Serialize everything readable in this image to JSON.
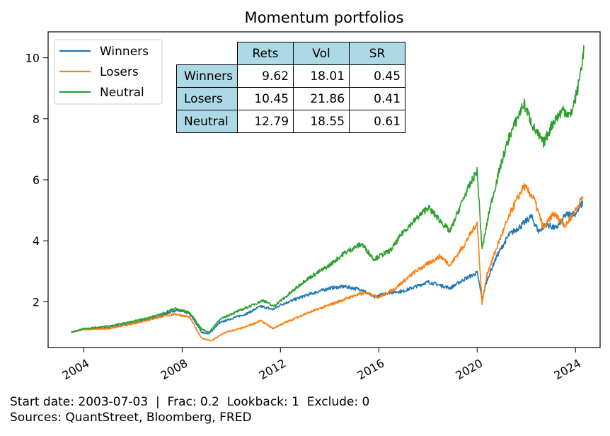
{
  "chart_data": {
    "type": "line",
    "title": "Momentum portfolios",
    "xlabel": "",
    "ylabel": "",
    "xlim": [
      2002.55,
      2025.0
    ],
    "ylim": [
      0.5,
      10.85
    ],
    "xticks": [
      2004,
      2008,
      2012,
      2016,
      2020,
      2024
    ],
    "xtick_labels": [
      "2004",
      "2008",
      "2012",
      "2016",
      "2020",
      "2024"
    ],
    "yticks": [
      2,
      4,
      6,
      8,
      10
    ],
    "ytick_labels": [
      "2",
      "4",
      "6",
      "8",
      "10"
    ],
    "grid": false,
    "legend_position": "top-left",
    "series": [
      {
        "name": "Winners",
        "color": "#1f77b4",
        "points": [
          [
            2003.5,
            1.0
          ],
          [
            2004.0,
            1.1
          ],
          [
            2005.0,
            1.15
          ],
          [
            2006.0,
            1.3
          ],
          [
            2007.0,
            1.5
          ],
          [
            2007.7,
            1.72
          ],
          [
            2008.3,
            1.62
          ],
          [
            2008.8,
            1.0
          ],
          [
            2009.1,
            0.95
          ],
          [
            2009.5,
            1.3
          ],
          [
            2010.0,
            1.45
          ],
          [
            2010.6,
            1.6
          ],
          [
            2011.2,
            1.85
          ],
          [
            2011.7,
            1.75
          ],
          [
            2012.0,
            1.9
          ],
          [
            2013.0,
            2.2
          ],
          [
            2014.0,
            2.45
          ],
          [
            2014.6,
            2.5
          ],
          [
            2015.3,
            2.4
          ],
          [
            2015.8,
            2.15
          ],
          [
            2016.4,
            2.3
          ],
          [
            2017.0,
            2.35
          ],
          [
            2018.0,
            2.65
          ],
          [
            2018.9,
            2.45
          ],
          [
            2019.5,
            2.75
          ],
          [
            2020.0,
            2.95
          ],
          [
            2020.2,
            2.1
          ],
          [
            2020.4,
            2.7
          ],
          [
            2020.8,
            3.5
          ],
          [
            2021.3,
            4.2
          ],
          [
            2021.8,
            4.5
          ],
          [
            2022.2,
            4.8
          ],
          [
            2022.5,
            4.3
          ],
          [
            2022.8,
            4.55
          ],
          [
            2023.2,
            4.4
          ],
          [
            2023.6,
            4.85
          ],
          [
            2024.0,
            4.9
          ],
          [
            2024.3,
            5.25
          ]
        ]
      },
      {
        "name": "Losers",
        "color": "#ff7f0e",
        "points": [
          [
            2003.5,
            1.0
          ],
          [
            2004.0,
            1.1
          ],
          [
            2005.0,
            1.12
          ],
          [
            2006.0,
            1.28
          ],
          [
            2007.0,
            1.48
          ],
          [
            2007.7,
            1.6
          ],
          [
            2008.3,
            1.5
          ],
          [
            2008.8,
            0.8
          ],
          [
            2009.2,
            0.72
          ],
          [
            2009.7,
            0.98
          ],
          [
            2010.5,
            1.15
          ],
          [
            2011.2,
            1.38
          ],
          [
            2011.7,
            1.12
          ],
          [
            2012.0,
            1.25
          ],
          [
            2013.0,
            1.6
          ],
          [
            2014.0,
            1.9
          ],
          [
            2015.0,
            2.2
          ],
          [
            2015.5,
            2.3
          ],
          [
            2016.0,
            2.15
          ],
          [
            2016.6,
            2.4
          ],
          [
            2017.5,
            3.0
          ],
          [
            2018.5,
            3.5
          ],
          [
            2018.9,
            3.2
          ],
          [
            2019.5,
            3.9
          ],
          [
            2020.0,
            4.6
          ],
          [
            2020.2,
            1.95
          ],
          [
            2020.4,
            2.9
          ],
          [
            2020.9,
            4.0
          ],
          [
            2021.4,
            5.0
          ],
          [
            2021.9,
            5.8
          ],
          [
            2022.3,
            5.4
          ],
          [
            2022.7,
            4.4
          ],
          [
            2023.1,
            4.9
          ],
          [
            2023.6,
            4.5
          ],
          [
            2024.0,
            5.0
          ],
          [
            2024.3,
            5.45
          ]
        ]
      },
      {
        "name": "Neutral",
        "color": "#2ca02c",
        "points": [
          [
            2003.5,
            1.0
          ],
          [
            2004.0,
            1.12
          ],
          [
            2005.0,
            1.2
          ],
          [
            2006.0,
            1.35
          ],
          [
            2007.0,
            1.55
          ],
          [
            2007.7,
            1.78
          ],
          [
            2008.3,
            1.65
          ],
          [
            2008.8,
            1.1
          ],
          [
            2009.1,
            1.0
          ],
          [
            2009.5,
            1.4
          ],
          [
            2010.0,
            1.6
          ],
          [
            2010.6,
            1.8
          ],
          [
            2011.3,
            2.05
          ],
          [
            2011.7,
            1.85
          ],
          [
            2012.2,
            2.15
          ],
          [
            2013.0,
            2.7
          ],
          [
            2014.0,
            3.2
          ],
          [
            2014.6,
            3.6
          ],
          [
            2015.3,
            3.9
          ],
          [
            2015.8,
            3.4
          ],
          [
            2016.5,
            3.7
          ],
          [
            2017.0,
            4.3
          ],
          [
            2018.0,
            5.1
          ],
          [
            2018.9,
            4.3
          ],
          [
            2019.5,
            5.5
          ],
          [
            2020.0,
            6.3
          ],
          [
            2020.2,
            3.7
          ],
          [
            2020.5,
            5.0
          ],
          [
            2020.9,
            6.3
          ],
          [
            2021.3,
            7.4
          ],
          [
            2021.9,
            8.5
          ],
          [
            2022.3,
            7.7
          ],
          [
            2022.7,
            7.2
          ],
          [
            2023.1,
            7.9
          ],
          [
            2023.5,
            8.3
          ],
          [
            2023.8,
            8.1
          ],
          [
            2024.1,
            9.0
          ],
          [
            2024.35,
            10.3
          ]
        ]
      }
    ],
    "table": {
      "columns": [
        "Rets",
        "Vol",
        "SR"
      ],
      "rows": [
        {
          "label": "Winners",
          "values": [
            "9.62",
            "18.01",
            "0.45"
          ]
        },
        {
          "label": "Losers",
          "values": [
            "10.45",
            "21.86",
            "0.41"
          ]
        },
        {
          "label": "Neutral",
          "values": [
            "12.79",
            "18.55",
            "0.61"
          ]
        }
      ]
    }
  },
  "footer": {
    "line1": "Start date: 2003-07-03  |  Frac: 0.2  Lookback: 1  Exclude: 0",
    "line2": "Sources: QuantStreet, Bloomberg, FRED"
  }
}
